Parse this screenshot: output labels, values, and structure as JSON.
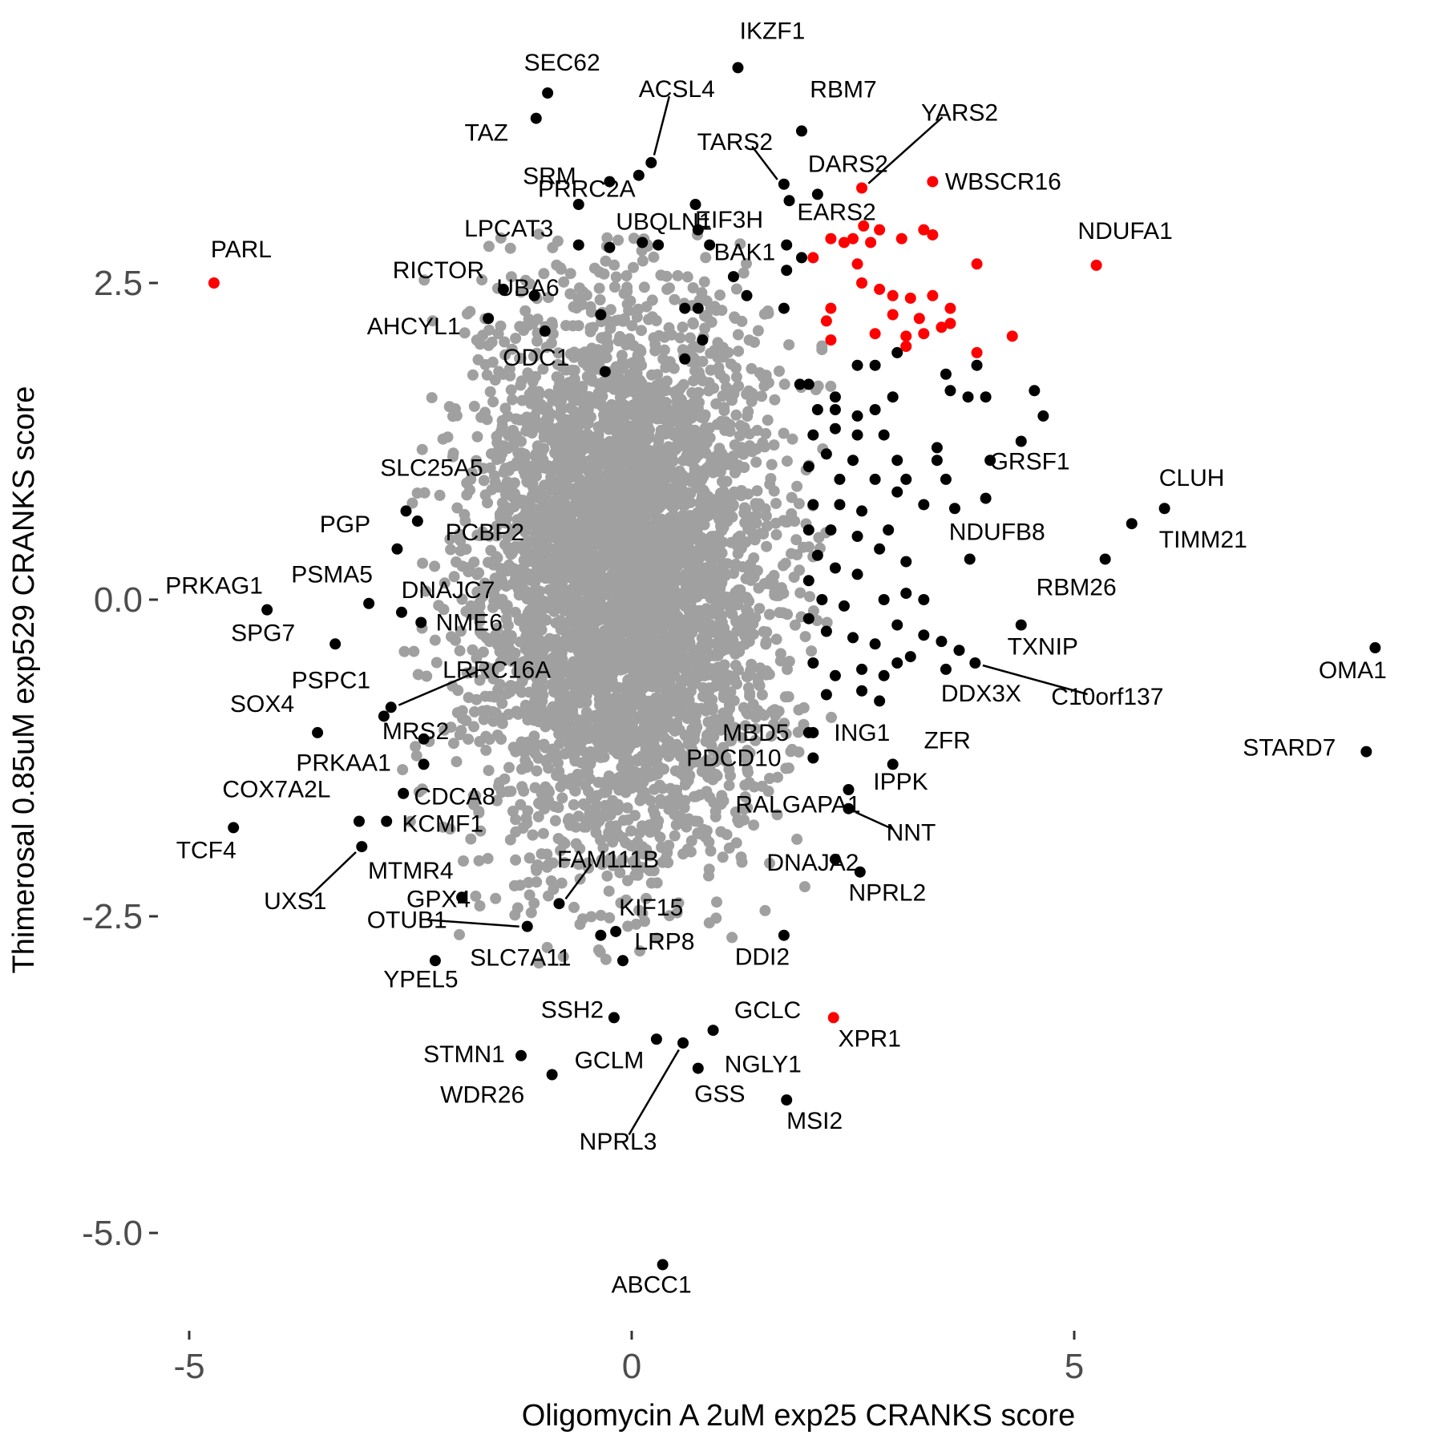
{
  "chart_data": {
    "type": "scatter",
    "xlabel": "Oligomycin A 2uM exp25 CRANKS score",
    "ylabel": "Thimerosal 0.85uM exp529 CRANKS score",
    "xlim": [
      -5.4,
      8.6
    ],
    "ylim": [
      -5.9,
      4.7
    ],
    "x_ticks": [
      {
        "value": -5,
        "label": "-5"
      },
      {
        "value": 0,
        "label": "0"
      },
      {
        "value": 5,
        "label": "5"
      }
    ],
    "y_ticks": [
      {
        "value": 2.5,
        "label": "2.5"
      },
      {
        "value": 0,
        "label": "0.0"
      },
      {
        "value": -2.5,
        "label": "-2.5"
      },
      {
        "value": -5,
        "label": "-5.0"
      }
    ],
    "grid": false,
    "legend": "none",
    "colors": {
      "background": "#ffffff",
      "gray_points": "#a0a0a0",
      "black_points": "#000000",
      "red_points": "#ff0000",
      "tick_text": "#4d4d4d"
    },
    "background_cloud": {
      "color": "gray",
      "center": [
        -0.1,
        0.2
      ],
      "sd": [
        0.85,
        1.1
      ],
      "count": 4500
    },
    "labeled_points": [
      {
        "label": "IKZF1",
        "x": 1.2,
        "y": 4.2,
        "color": "black"
      },
      {
        "label": "SEC62",
        "x": -0.95,
        "y": 4.0,
        "color": "black"
      },
      {
        "label": "ACSL4",
        "x": 0.22,
        "y": 3.45,
        "color": "black"
      },
      {
        "label": "TAZ",
        "x": -1.08,
        "y": 3.8,
        "color": "black"
      },
      {
        "label": "RBM7",
        "x": 1.92,
        "y": 3.7,
        "color": "black"
      },
      {
        "label": "YARS2",
        "x": 2.6,
        "y": 3.25,
        "color": "red"
      },
      {
        "label": "PRRC2A",
        "x": 0.08,
        "y": 3.35,
        "color": "black"
      },
      {
        "label": "TARS2",
        "x": 1.72,
        "y": 3.28,
        "color": "black"
      },
      {
        "label": "DARS2",
        "x": 2.1,
        "y": 3.2,
        "color": "black"
      },
      {
        "label": "WBSCR16",
        "x": 3.4,
        "y": 3.3,
        "color": "red"
      },
      {
        "label": "SRM",
        "x": -0.25,
        "y": 3.3,
        "color": "black"
      },
      {
        "label": "EIF3H",
        "x": 0.72,
        "y": 3.12,
        "color": "black"
      },
      {
        "label": "BAK1",
        "x": 0.75,
        "y": 2.92,
        "color": "black"
      },
      {
        "label": "EARS2",
        "x": 1.78,
        "y": 3.15,
        "color": "black"
      },
      {
        "label": "LPCAT3",
        "x": -0.6,
        "y": 3.12,
        "color": "black"
      },
      {
        "label": "UBQLN1",
        "x": 0.12,
        "y": 2.82,
        "color": "black"
      },
      {
        "label": "NDUFA1",
        "x": 5.25,
        "y": 2.64,
        "color": "red"
      },
      {
        "label": "PARL",
        "x": -4.72,
        "y": 2.5,
        "color": "red"
      },
      {
        "label": "RICTOR",
        "x": -1.45,
        "y": 2.45,
        "color": "black"
      },
      {
        "label": "UBA6",
        "x": -1.1,
        "y": 2.4,
        "color": "black"
      },
      {
        "label": "AHCYL1",
        "x": -1.62,
        "y": 2.22,
        "color": "black"
      },
      {
        "label": "ODC1",
        "x": -0.98,
        "y": 2.12,
        "color": "black"
      },
      {
        "label": "SLC25A5",
        "x": -2.55,
        "y": 0.7,
        "color": "black"
      },
      {
        "label": "PGP",
        "x": -2.65,
        "y": 0.4,
        "color": "black"
      },
      {
        "label": "PCBP2",
        "x": -2.42,
        "y": 0.62,
        "color": "black"
      },
      {
        "label": "PRKAG1",
        "x": -4.12,
        "y": -0.08,
        "color": "black"
      },
      {
        "label": "PSMA5",
        "x": -2.97,
        "y": -0.03,
        "color": "black"
      },
      {
        "label": "DNAJC7",
        "x": -2.6,
        "y": -0.1,
        "color": "black"
      },
      {
        "label": "SPG7",
        "x": -3.35,
        "y": -0.35,
        "color": "black"
      },
      {
        "label": "NME6",
        "x": -2.38,
        "y": -0.18,
        "color": "black"
      },
      {
        "label": "PSPC1",
        "x": -2.8,
        "y": -0.92,
        "color": "black"
      },
      {
        "label": "LRRC16A",
        "x": -2.72,
        "y": -0.85,
        "color": "black"
      },
      {
        "label": "SOX4",
        "x": -3.55,
        "y": -1.05,
        "color": "black"
      },
      {
        "label": "MRS2",
        "x": -2.35,
        "y": -1.1,
        "color": "black"
      },
      {
        "label": "PRKAA1",
        "x": -2.35,
        "y": -1.3,
        "color": "black"
      },
      {
        "label": "CDCA8",
        "x": -2.58,
        "y": -1.53,
        "color": "black"
      },
      {
        "label": "COX7A2L",
        "x": -3.08,
        "y": -1.75,
        "color": "black"
      },
      {
        "label": "KCMF1",
        "x": -2.77,
        "y": -1.75,
        "color": "black"
      },
      {
        "label": "TCF4",
        "x": -4.5,
        "y": -1.8,
        "color": "black"
      },
      {
        "label": "MTMR4",
        "x": -3.05,
        "y": -1.95,
        "color": "black"
      },
      {
        "label": "UXS1",
        "x": -3.05,
        "y": -1.95,
        "color": "black"
      },
      {
        "label": "GPX4",
        "x": -1.92,
        "y": -2.35,
        "color": "black"
      },
      {
        "label": "FAM111B",
        "x": -0.82,
        "y": -2.4,
        "color": "black"
      },
      {
        "label": "KIF15",
        "x": -0.18,
        "y": -2.62,
        "color": "black"
      },
      {
        "label": "OTUB1",
        "x": -1.18,
        "y": -2.58,
        "color": "black"
      },
      {
        "label": "SLC7A11",
        "x": -0.35,
        "y": -2.65,
        "color": "black"
      },
      {
        "label": "YPEL5",
        "x": -2.22,
        "y": -2.85,
        "color": "black"
      },
      {
        "label": "LRP8",
        "x": -0.1,
        "y": -2.85,
        "color": "black"
      },
      {
        "label": "SSH2",
        "x": -0.2,
        "y": -3.3,
        "color": "black"
      },
      {
        "label": "GCLC",
        "x": 0.92,
        "y": -3.4,
        "color": "black"
      },
      {
        "label": "XPR1",
        "x": 2.28,
        "y": -3.3,
        "color": "red"
      },
      {
        "label": "STMN1",
        "x": -1.25,
        "y": -3.6,
        "color": "black"
      },
      {
        "label": "GCLM",
        "x": 0.28,
        "y": -3.47,
        "color": "black"
      },
      {
        "label": "NGLY1",
        "x": 0.75,
        "y": -3.7,
        "color": "black"
      },
      {
        "label": "NPRL3",
        "x": 0.58,
        "y": -3.5,
        "color": "black"
      },
      {
        "label": "WDR26",
        "x": -0.9,
        "y": -3.75,
        "color": "black"
      },
      {
        "label": "GSS",
        "x": 0.75,
        "y": -3.7,
        "color": "black"
      },
      {
        "label": "MSI2",
        "x": 1.75,
        "y": -3.95,
        "color": "black"
      },
      {
        "label": "ABCC1",
        "x": 0.35,
        "y": -5.25,
        "color": "black"
      },
      {
        "label": "GRSF1",
        "x": 4.0,
        "y": 0.8,
        "color": "black"
      },
      {
        "label": "CLUH",
        "x": 6.02,
        "y": 0.72,
        "color": "black"
      },
      {
        "label": "NDUFB8",
        "x": 3.82,
        "y": 0.32,
        "color": "black"
      },
      {
        "label": "TIMM21",
        "x": 5.65,
        "y": 0.6,
        "color": "black"
      },
      {
        "label": "RBM26",
        "x": 5.35,
        "y": 0.32,
        "color": "black"
      },
      {
        "label": "TXNIP",
        "x": 4.4,
        "y": -0.2,
        "color": "black"
      },
      {
        "label": "OMA1",
        "x": 8.4,
        "y": -0.38,
        "color": "black"
      },
      {
        "label": "DDX3X",
        "x": 3.55,
        "y": -0.55,
        "color": "black"
      },
      {
        "label": "C10orf137",
        "x": 3.88,
        "y": -0.5,
        "color": "black"
      },
      {
        "label": "MBD5",
        "x": 2.0,
        "y": -1.05,
        "color": "black"
      },
      {
        "label": "ING1",
        "x": 2.05,
        "y": -1.05,
        "color": "black"
      },
      {
        "label": "STARD7",
        "x": 8.3,
        "y": -1.2,
        "color": "black"
      },
      {
        "label": "ZFR",
        "x": 2.95,
        "y": -1.3,
        "color": "black"
      },
      {
        "label": "PDCD10",
        "x": 2.05,
        "y": -1.25,
        "color": "black"
      },
      {
        "label": "IPPK",
        "x": 2.45,
        "y": -1.5,
        "color": "black"
      },
      {
        "label": "RALGAPA1",
        "x": 2.45,
        "y": -1.65,
        "color": "black"
      },
      {
        "label": "NNT",
        "x": 2.45,
        "y": -1.65,
        "color": "black"
      },
      {
        "label": "DNAJA2",
        "x": 2.3,
        "y": -2.05,
        "color": "black"
      },
      {
        "label": "NPRL2",
        "x": 2.58,
        "y": -2.15,
        "color": "black"
      },
      {
        "label": "DDI2",
        "x": 1.72,
        "y": -2.65,
        "color": "black"
      }
    ],
    "extra_points_red": [
      [
        2.05,
        2.7
      ],
      [
        2.25,
        2.85
      ],
      [
        2.4,
        2.82
      ],
      [
        2.5,
        2.85
      ],
      [
        2.62,
        2.95
      ],
      [
        2.7,
        2.82
      ],
      [
        2.55,
        2.65
      ],
      [
        2.6,
        2.5
      ],
      [
        2.8,
        2.92
      ],
      [
        3.05,
        2.85
      ],
      [
        3.3,
        2.92
      ],
      [
        3.4,
        2.88
      ],
      [
        3.9,
        2.65
      ],
      [
        2.8,
        2.45
      ],
      [
        2.95,
        2.4
      ],
      [
        3.15,
        2.38
      ],
      [
        3.4,
        2.4
      ],
      [
        2.25,
        2.3
      ],
      [
        3.6,
        2.3
      ],
      [
        2.95,
        2.25
      ],
      [
        2.2,
        2.2
      ],
      [
        3.25,
        2.22
      ],
      [
        3.5,
        2.15
      ],
      [
        3.6,
        2.18
      ],
      [
        2.25,
        2.05
      ],
      [
        2.75,
        2.1
      ],
      [
        3.1,
        2.08
      ],
      [
        3.3,
        2.1
      ],
      [
        3.1,
        2.0
      ],
      [
        4.3,
        2.08
      ],
      [
        3.9,
        1.95
      ]
    ],
    "extra_points_black": [
      [
        -0.6,
        2.8
      ],
      [
        -0.25,
        2.78
      ],
      [
        0.3,
        2.8
      ],
      [
        0.88,
        2.8
      ],
      [
        1.75,
        2.8
      ],
      [
        1.92,
        2.7
      ],
      [
        1.75,
        2.6
      ],
      [
        1.15,
        2.55
      ],
      [
        0.6,
        2.3
      ],
      [
        0.75,
        2.3
      ],
      [
        1.3,
        2.4
      ],
      [
        1.72,
        2.3
      ],
      [
        -0.35,
        2.25
      ],
      [
        -0.3,
        1.8
      ],
      [
        0.6,
        1.9
      ],
      [
        0.8,
        2.05
      ],
      [
        1.9,
        1.7
      ],
      [
        2.0,
        1.7
      ],
      [
        2.3,
        1.6
      ],
      [
        2.55,
        1.85
      ],
      [
        2.75,
        1.85
      ],
      [
        3.0,
        1.95
      ],
      [
        3.55,
        1.78
      ],
      [
        3.9,
        1.85
      ],
      [
        2.1,
        1.5
      ],
      [
        2.3,
        1.5
      ],
      [
        2.55,
        1.45
      ],
      [
        2.75,
        1.5
      ],
      [
        2.95,
        1.6
      ],
      [
        3.6,
        1.65
      ],
      [
        3.8,
        1.6
      ],
      [
        4.0,
        1.6
      ],
      [
        4.55,
        1.65
      ],
      [
        2.05,
        1.3
      ],
      [
        2.3,
        1.35
      ],
      [
        2.55,
        1.3
      ],
      [
        2.85,
        1.3
      ],
      [
        3.45,
        1.2
      ],
      [
        4.65,
        1.45
      ],
      [
        2.2,
        1.15
      ],
      [
        2.5,
        1.1
      ],
      [
        3.0,
        1.1
      ],
      [
        3.45,
        1.1
      ],
      [
        4.05,
        1.1
      ],
      [
        4.4,
        1.25
      ],
      [
        2.0,
        1.05
      ],
      [
        2.35,
        0.95
      ],
      [
        2.75,
        0.95
      ],
      [
        3.1,
        0.95
      ],
      [
        3.55,
        0.95
      ],
      [
        2.05,
        0.75
      ],
      [
        2.35,
        0.75
      ],
      [
        2.6,
        0.7
      ],
      [
        2.9,
        0.55
      ],
      [
        3.0,
        0.85
      ],
      [
        3.3,
        0.75
      ],
      [
        3.65,
        0.72
      ],
      [
        2.0,
        0.55
      ],
      [
        2.25,
        0.55
      ],
      [
        2.55,
        0.5
      ],
      [
        2.8,
        0.4
      ],
      [
        2.1,
        0.35
      ],
      [
        2.3,
        0.25
      ],
      [
        2.55,
        0.2
      ],
      [
        3.1,
        0.3
      ],
      [
        2.0,
        0.15
      ],
      [
        2.15,
        0.0
      ],
      [
        2.4,
        -0.05
      ],
      [
        2.85,
        0.0
      ],
      [
        3.1,
        0.05
      ],
      [
        3.3,
        0.0
      ],
      [
        2.0,
        -0.15
      ],
      [
        2.2,
        -0.25
      ],
      [
        2.5,
        -0.3
      ],
      [
        2.75,
        -0.35
      ],
      [
        3.0,
        -0.2
      ],
      [
        3.3,
        -0.28
      ],
      [
        3.5,
        -0.33
      ],
      [
        3.7,
        -0.4
      ],
      [
        2.05,
        -0.5
      ],
      [
        2.3,
        -0.6
      ],
      [
        2.6,
        -0.55
      ],
      [
        2.85,
        -0.6
      ],
      [
        3.0,
        -0.5
      ],
      [
        3.15,
        -0.45
      ],
      [
        2.2,
        -0.75
      ],
      [
        2.6,
        -0.72
      ],
      [
        2.8,
        -0.8
      ]
    ]
  }
}
